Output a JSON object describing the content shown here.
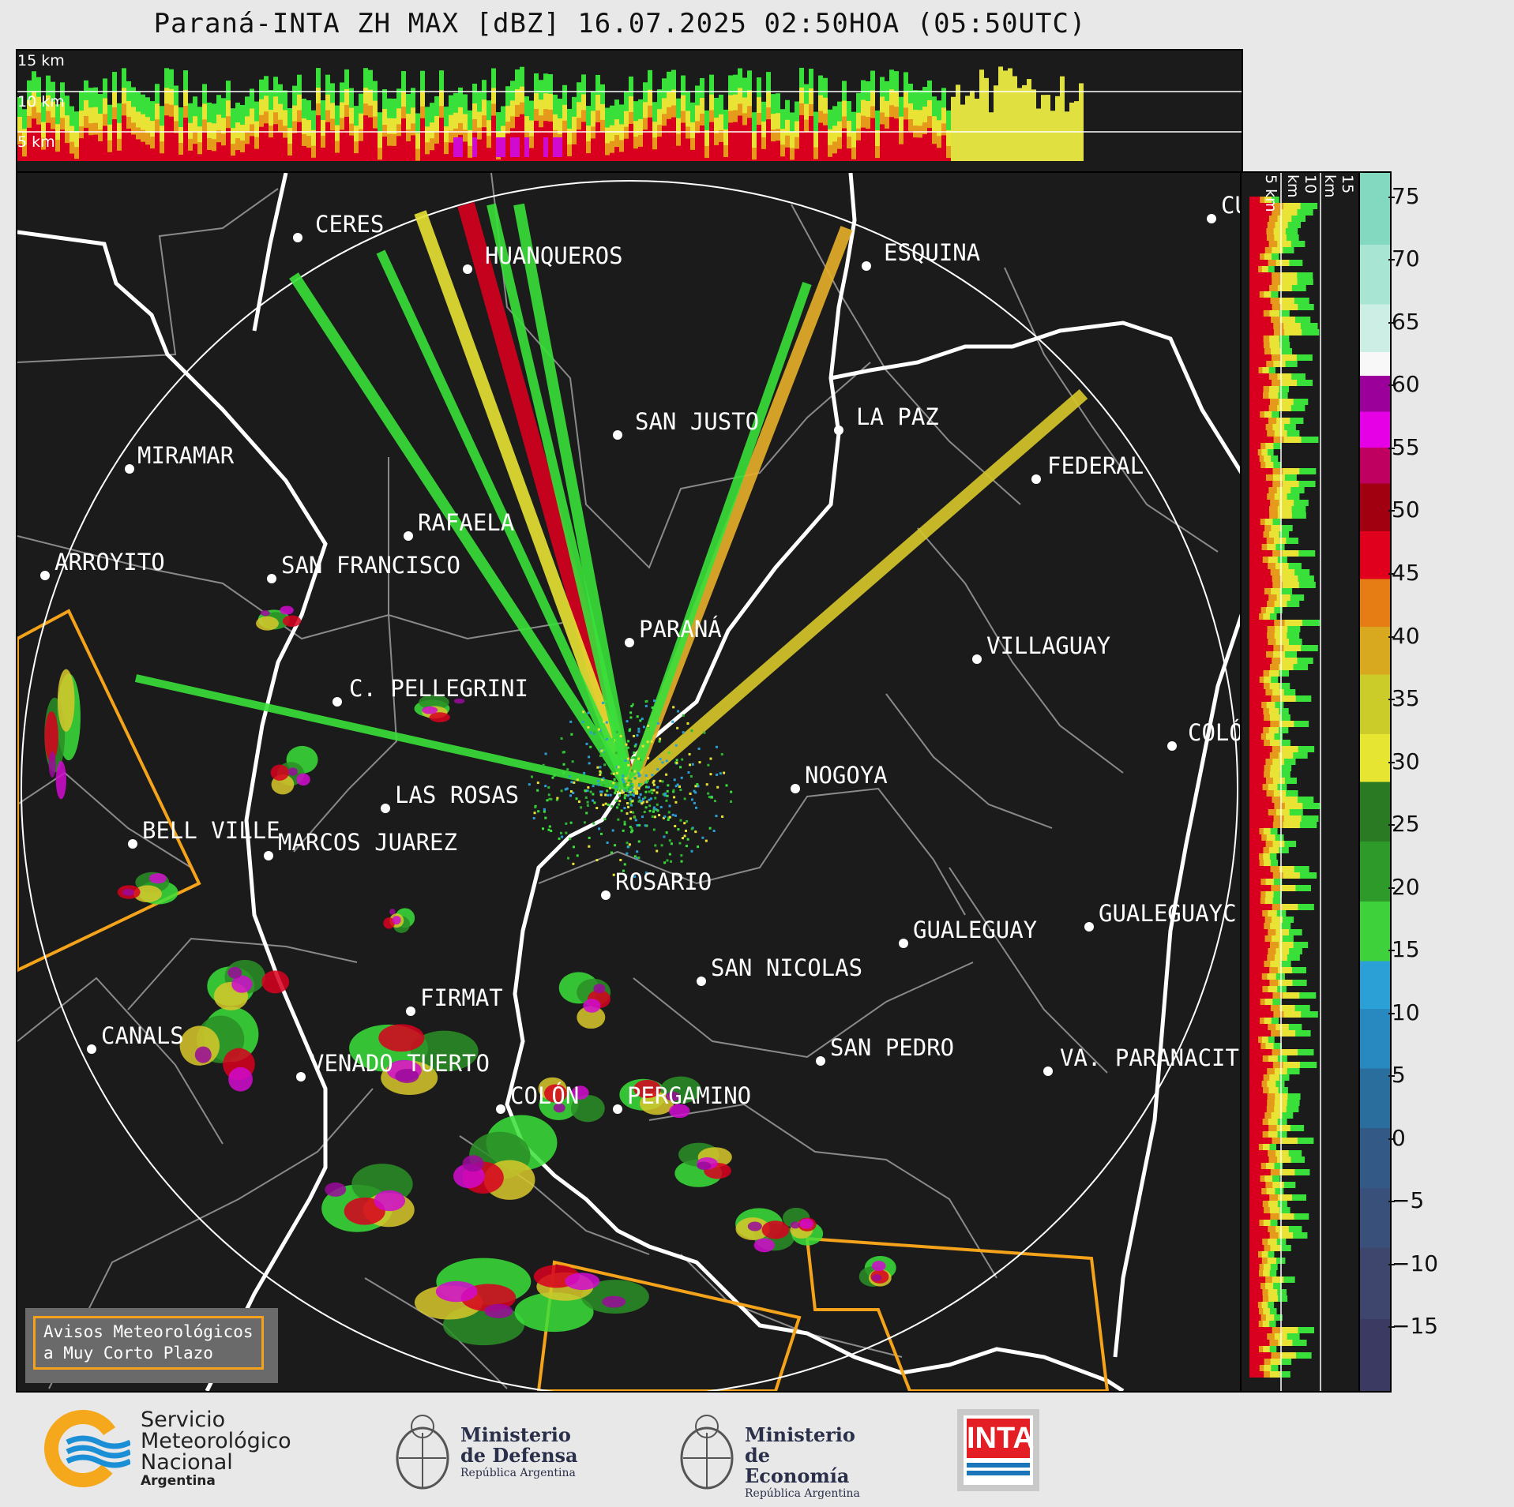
{
  "title": "Paraná-INTA ZH MAX [dBZ] 16.07.2025 02:50HOA (05:50UTC)",
  "top_panel_altitudes": [
    "15 km",
    "10 km",
    "5 km"
  ],
  "side_panel_altitudes": [
    "5 km",
    "10 km",
    "15 km"
  ],
  "colorbar": {
    "ticks": [
      "75",
      "70",
      "65",
      "60",
      "55",
      "50",
      "45",
      "40",
      "35",
      "30",
      "25",
      "20",
      "15",
      "10",
      "5",
      "0",
      "−5",
      "−10",
      "−15"
    ],
    "range": [
      -20,
      77
    ],
    "unit": "dBZ"
  },
  "cities": [
    {
      "name": "CERES"
    },
    {
      "name": "HUANQUEROS"
    },
    {
      "name": "ESQUINA"
    },
    {
      "name": "CU"
    },
    {
      "name": "SAN JUSTO"
    },
    {
      "name": "LA PAZ"
    },
    {
      "name": "MIRAMAR"
    },
    {
      "name": "FEDERAL"
    },
    {
      "name": "RAFAELA"
    },
    {
      "name": "ARROYITO"
    },
    {
      "name": "SAN FRANCISCO"
    },
    {
      "name": "PARANÁ"
    },
    {
      "name": "VILLAGUAY"
    },
    {
      "name": "C. PELLEGRINI"
    },
    {
      "name": "COLÓ"
    },
    {
      "name": "NOGOYA"
    },
    {
      "name": "LAS ROSAS"
    },
    {
      "name": "BELL VILLE"
    },
    {
      "name": "MARCOS JUAREZ"
    },
    {
      "name": "ROSARIO"
    },
    {
      "name": "GUALEGUAYC"
    },
    {
      "name": "GUALEGUAY"
    },
    {
      "name": "SAN NICOLAS"
    },
    {
      "name": "FIRMAT"
    },
    {
      "name": "CANALS"
    },
    {
      "name": "SAN PEDRO"
    },
    {
      "name": "VENADO TUERTO"
    },
    {
      "name": "VA. PARANACIT"
    },
    {
      "name": "COLÓN"
    },
    {
      "name": "PERGAMINO"
    }
  ],
  "avisos": {
    "line1": "Avisos Meteorológicos",
    "line2": "a Muy Corto Plazo"
  },
  "logos": {
    "smn": {
      "line1": "Servicio",
      "line2": "Meteorológico",
      "line3": "Nacional",
      "line4": "Argentina"
    },
    "defensa": {
      "line1": "Ministerio",
      "line2": "de Defensa",
      "line3": "República Argentina"
    },
    "economia": {
      "line1": "Ministerio",
      "line2": "de Economía",
      "line3": "República Argentina"
    },
    "inta": {
      "label": "INTA"
    }
  }
}
